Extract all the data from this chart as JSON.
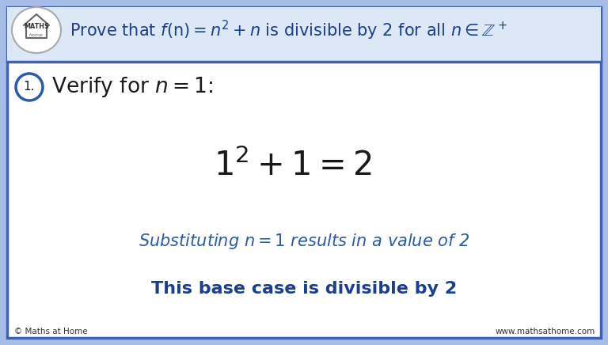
{
  "bg_color": "#ffffff",
  "border_outer_color": "#a8bce8",
  "border_inner_color": "#4060b0",
  "title_text": "Prove that $f(\\mathrm{n}) = n^2 + n$ is divisible by 2 for all $n \\in \\mathbb{Z}^+$",
  "step1_label": "1.",
  "step1_text": "Verify for $n = 1$:",
  "equation": "$1^2 + 1 = 2$",
  "sub_text": "Substituting $n = 1$ results in a value of 2",
  "base_text": "This base case is divisible by 2",
  "footer_left": "© Maths at Home",
  "footer_right": "www.mathsathome.com",
  "blue_dark": "#1a3f8f",
  "blue_mid": "#2a5aaa",
  "text_dark": "#1a1a1a",
  "circle_color": "#2a5aaa",
  "header_line_color": "#4060b0",
  "logo_circle_color": "#cccccc",
  "title_color": "#1a3f8f"
}
